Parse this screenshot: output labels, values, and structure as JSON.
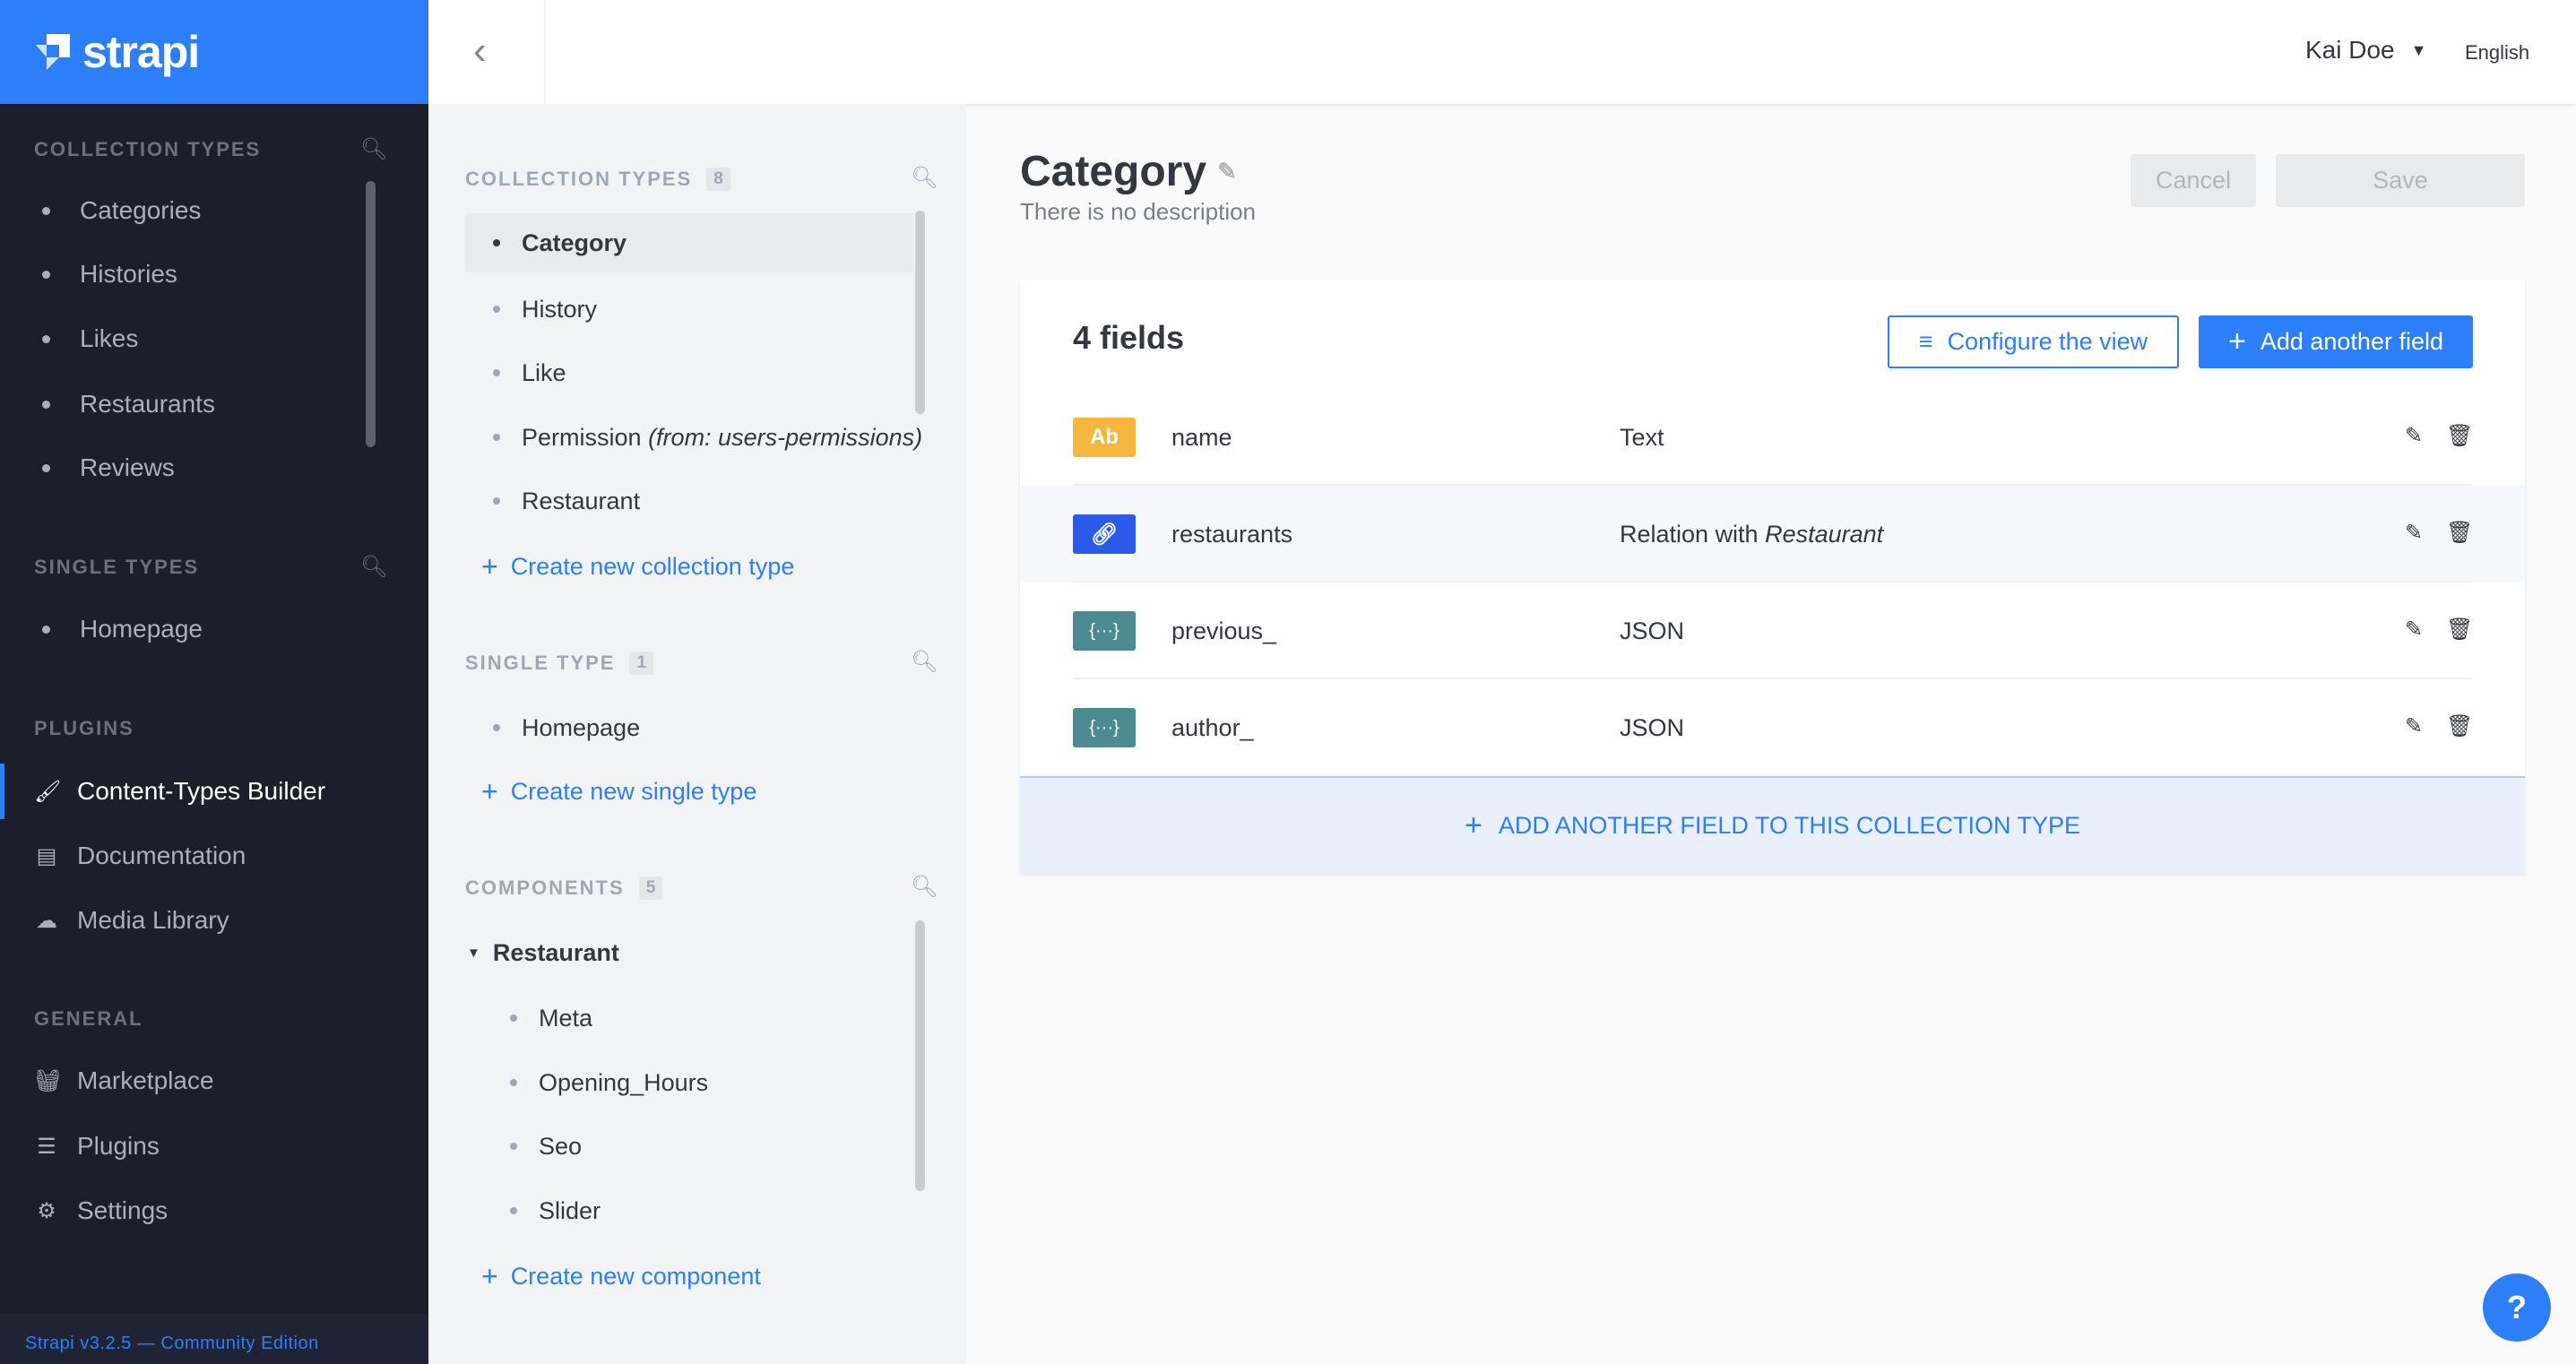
{
  "brand": {
    "name": "strapi",
    "logo_color": "#2d7ff9"
  },
  "leftnav": {
    "collection_types": {
      "title": "COLLECTION TYPES",
      "items": [
        "Categories",
        "Histories",
        "Likes",
        "Restaurants",
        "Reviews"
      ]
    },
    "single_types": {
      "title": "SINGLE TYPES",
      "items": [
        "Homepage"
      ]
    },
    "plugins": {
      "title": "PLUGINS",
      "items": [
        {
          "label": "Content-Types Builder",
          "icon": "paintbrush-icon",
          "active": true
        },
        {
          "label": "Documentation",
          "icon": "book-icon"
        },
        {
          "label": "Media Library",
          "icon": "cloud-upload-icon"
        }
      ]
    },
    "general": {
      "title": "GENERAL",
      "items": [
        {
          "label": "Marketplace",
          "icon": "basket-icon"
        },
        {
          "label": "Plugins",
          "icon": "list-icon"
        },
        {
          "label": "Settings",
          "icon": "gear-icon"
        }
      ]
    },
    "footer": "Strapi v3.2.5 — Community Edition"
  },
  "header": {
    "user": "Kai Doe",
    "language": "English"
  },
  "builder_nav": {
    "collection_types": {
      "title": "COLLECTION TYPES",
      "count": "8",
      "items": [
        "Category",
        "History",
        "Like",
        "Restaurant"
      ],
      "permission": "Permission",
      "permission_from": "(from: users-permissions)",
      "create": "Create new collection type",
      "selected": "Category"
    },
    "single_type": {
      "title": "SINGLE TYPE",
      "count": "1",
      "items": [
        "Homepage"
      ],
      "create": "Create new single type"
    },
    "components": {
      "title": "COMPONENTS",
      "count": "5",
      "category": "Restaurant",
      "items": [
        "Meta",
        "Opening_Hours",
        "Seo",
        "Slider"
      ],
      "create": "Create new component"
    }
  },
  "main": {
    "title": "Category",
    "description": "There is no description",
    "cancel": "Cancel",
    "save": "Save",
    "fields_count": "4 fields",
    "configure": "Configure the view",
    "add_field": "Add another field",
    "fields": [
      {
        "name": "name",
        "type": "Text",
        "icon": "Ab",
        "color": "#f6b73f"
      },
      {
        "name": "restaurants",
        "type": "Relation with ",
        "type_italic": "Restaurant",
        "icon": "link-icon",
        "color": "#2b5ae8"
      },
      {
        "name": "previous_",
        "type": "JSON",
        "icon": "{···}",
        "color": "#4d8b92"
      },
      {
        "name": "author_",
        "type": "JSON",
        "icon": "{···}",
        "color": "#4d8b92"
      }
    ],
    "add_to_type": "ADD ANOTHER FIELD TO THIS COLLECTION TYPE"
  },
  "help": "?"
}
